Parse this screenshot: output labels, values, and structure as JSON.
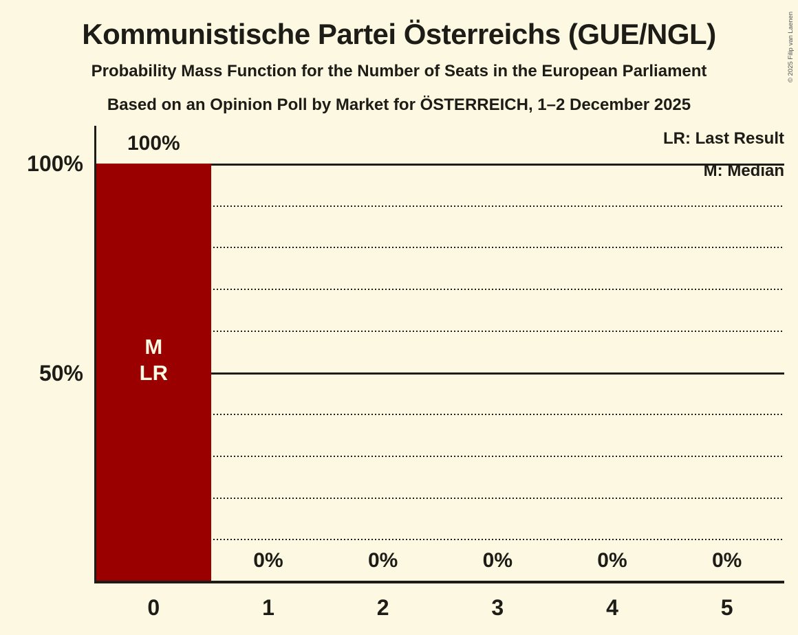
{
  "header": {
    "title": "Kommunistische Partei Österreichs (GUE/NGL)",
    "subtitle": "Probability Mass Function for the Number of Seats in the European Parliament",
    "source_line": "Based on an Opinion Poll by Market for ÖSTERREICH, 1–2 December 2025",
    "copyright": "© 2025 Filip van Laenen"
  },
  "legend": {
    "last_result": "LR: Last Result",
    "median": "M: Median"
  },
  "y_axis": {
    "labels": [
      "100%",
      "50%"
    ]
  },
  "chart_data": {
    "type": "bar",
    "title": "Probability Mass Function for the Number of Seats in the European Parliament",
    "categories": [
      "0",
      "1",
      "2",
      "3",
      "4",
      "5"
    ],
    "values": [
      100,
      0,
      0,
      0,
      0,
      0
    ],
    "value_labels": [
      "100%",
      "0%",
      "0%",
      "0%",
      "0%",
      "0%"
    ],
    "ylim": [
      0,
      100
    ],
    "solid_gridlines_at": [
      50,
      100
    ],
    "dotted_gridlines_at": [
      10,
      20,
      30,
      40,
      60,
      70,
      80,
      90
    ],
    "legend_position": "top-right",
    "annotations": {
      "category_index": 0,
      "lines": [
        "M",
        "LR"
      ]
    }
  },
  "colors": {
    "background": "#FCF8E1",
    "bar": "#9B0000",
    "text": "#1D1C16",
    "bar_annotation_text": "#FCF8E1",
    "copyright_text": "#555555"
  }
}
